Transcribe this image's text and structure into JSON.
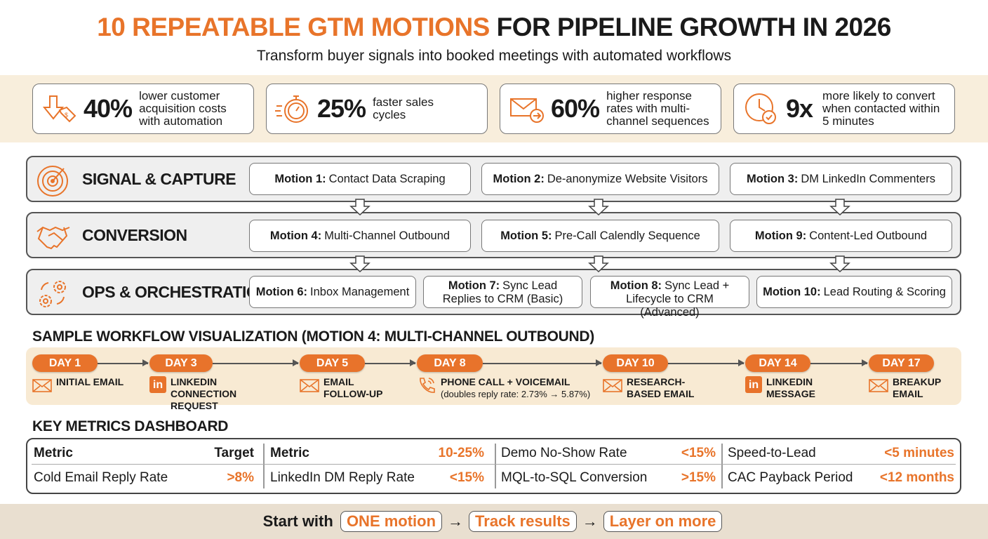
{
  "header": {
    "title_highlight": "10 REPEATABLE GTM MOTIONS",
    "title_rest": "FOR PIPELINE GROWTH IN 2026",
    "subtitle": "Transform buyer signals into booked meetings with automated workflows"
  },
  "stats": [
    {
      "icon": "price-tag-down-icon",
      "value": "40%",
      "desc": "lower customer acquisition costs with automation"
    },
    {
      "icon": "stopwatch-icon",
      "value": "25%",
      "desc": "faster sales cycles"
    },
    {
      "icon": "email-arrow-icon",
      "value": "60%",
      "desc": "higher response rates with multi-channel sequences"
    },
    {
      "icon": "clock-check-icon",
      "value": "9x",
      "desc": "more likely to convert when contacted within 5 minutes"
    }
  ],
  "layers": [
    {
      "name": "SIGNAL & CAPTURE",
      "icon": "radar-icon",
      "motions": [
        {
          "num": "Motion 1:",
          "label": "Contact Data Scraping"
        },
        {
          "num": "Motion 2:",
          "label": "De-anonymize Website Visitors"
        },
        {
          "num": "Motion 3:",
          "label": "DM LinkedIn Commenters"
        }
      ]
    },
    {
      "name": "CONVERSION",
      "icon": "handshake-icon",
      "motions": [
        {
          "num": "Motion 4:",
          "label": "Multi-Channel Outbound"
        },
        {
          "num": "Motion 5:",
          "label": "Pre-Call Calendly Sequence"
        },
        {
          "num": "Motion 9:",
          "label": "Content-Led Outbound"
        }
      ]
    },
    {
      "name": "OPS & ORCHESTRATION",
      "icon": "gears-icon",
      "motions": [
        {
          "num": "Motion 6:",
          "label": "Inbox Management"
        },
        {
          "num": "Motion 7:",
          "label": "Sync Lead Replies to CRM (Basic)"
        },
        {
          "num": "Motion 8:",
          "label": "Sync Lead + Lifecycle to CRM (Advanced)"
        },
        {
          "num": "Motion 10:",
          "label": "Lead Routing & Scoring"
        }
      ]
    }
  ],
  "workflow": {
    "title": "SAMPLE WORKFLOW VISUALIZATION (MOTION 4: MULTI-CHANNEL OUTBOUND)",
    "steps": [
      {
        "day": "DAY 1",
        "icon": "email-icon",
        "label": "INITIAL EMAIL"
      },
      {
        "day": "DAY 3",
        "icon": "linkedin-icon",
        "label": "LINKEDIN CONNECTION REQUEST"
      },
      {
        "day": "DAY 5",
        "icon": "email-icon",
        "label": "EMAIL FOLLOW-UP"
      },
      {
        "day": "DAY 8",
        "icon": "phone-icon",
        "label": "PHONE CALL + VOICEMAIL",
        "note": "(doubles reply rate: 2.73% → 5.87%)"
      },
      {
        "day": "DAY 10",
        "icon": "email-icon",
        "label": "RESEARCH-BASED EMAIL"
      },
      {
        "day": "DAY 14",
        "icon": "linkedin-icon",
        "label": "LINKEDIN MESSAGE"
      },
      {
        "day": "DAY 17",
        "icon": "email-icon",
        "label": "BREAKUP EMAIL"
      }
    ]
  },
  "metrics": {
    "title": "KEY METRICS DASHBOARD",
    "cells": [
      [
        {
          "m": "Metric",
          "v": "Target",
          "header": true
        },
        {
          "m": "Cold Email Reply Rate",
          "v": ">8%"
        }
      ],
      [
        {
          "m": "Metric",
          "v": "10-25%",
          "header": true
        },
        {
          "m": "LinkedIn DM Reply Rate",
          "v": "<15%"
        }
      ],
      [
        {
          "m": "Demo No-Show Rate",
          "v": "<15%"
        },
        {
          "m": "MQL-to-SQL Conversion",
          "v": ">15%"
        }
      ],
      [
        {
          "m": "Speed-to-Lead",
          "v": "<5 minutes"
        },
        {
          "m": "CAC Payback Period",
          "v": "<12 months"
        }
      ]
    ]
  },
  "footer": {
    "lead": "Start with",
    "steps": [
      "ONE motion",
      "Track results",
      "Layer on more"
    ],
    "arrow": "→"
  },
  "colors": {
    "accent": "#E8742A",
    "band": "#F8EEDC"
  }
}
